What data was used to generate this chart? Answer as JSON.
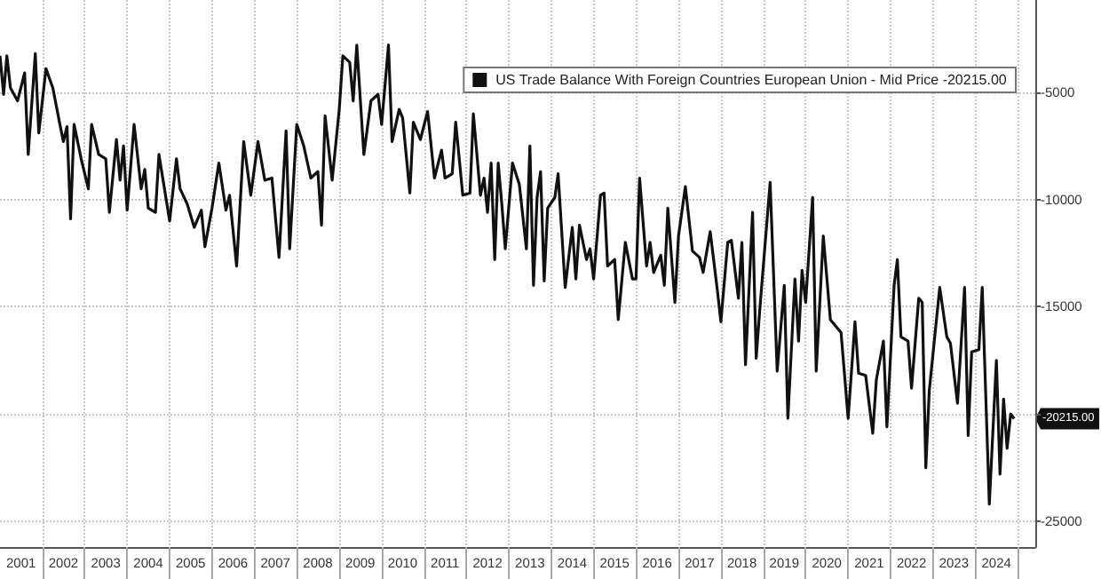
{
  "chart_data": {
    "type": "line",
    "x": [
      "2001-01",
      "2001-02",
      "2001-03",
      "2001-04",
      "2001-06",
      "2001-08",
      "2001-09",
      "2001-11",
      "2001-12",
      "2002-02",
      "2002-04",
      "2002-06",
      "2002-07",
      "2002-08",
      "2002-09",
      "2002-10",
      "2002-12",
      "2003-02",
      "2003-03",
      "2003-05",
      "2003-07",
      "2003-08",
      "2003-10",
      "2003-11",
      "2003-12",
      "2004-01",
      "2004-03",
      "2004-05",
      "2004-06",
      "2004-07",
      "2004-09",
      "2004-10",
      "2005-01",
      "2005-03",
      "2005-04",
      "2005-06",
      "2005-08",
      "2005-10",
      "2005-11",
      "2006-01",
      "2006-03",
      "2006-05",
      "2006-06",
      "2006-08",
      "2006-10",
      "2006-12",
      "2007-02",
      "2007-04",
      "2007-06",
      "2007-08",
      "2007-10",
      "2007-11",
      "2008-01",
      "2008-03",
      "2008-05",
      "2008-07",
      "2008-08",
      "2008-09",
      "2008-11",
      "2009-01",
      "2009-02",
      "2009-04",
      "2009-05",
      "2009-06",
      "2009-08",
      "2009-10",
      "2009-12",
      "2010-01",
      "2010-03",
      "2010-04",
      "2010-06",
      "2010-07",
      "2010-09",
      "2010-10",
      "2010-12",
      "2011-02",
      "2011-04",
      "2011-06",
      "2011-07",
      "2011-09",
      "2011-10",
      "2011-12",
      "2012-02",
      "2012-03",
      "2012-05",
      "2012-06",
      "2012-07",
      "2012-08",
      "2012-09",
      "2012-10",
      "2012-11",
      "2012-12",
      "2013-02",
      "2013-04",
      "2013-06",
      "2013-07",
      "2013-08",
      "2013-09",
      "2013-10",
      "2013-11",
      "2013-12",
      "2014-02",
      "2014-03",
      "2014-05",
      "2014-07",
      "2014-08",
      "2014-09",
      "2014-11",
      "2014-12",
      "2015-01",
      "2015-03",
      "2015-04",
      "2015-05",
      "2015-07",
      "2015-08",
      "2015-10",
      "2015-12",
      "2016-01",
      "2016-02",
      "2016-04",
      "2016-05",
      "2016-06",
      "2016-08",
      "2016-09",
      "2016-10",
      "2016-12",
      "2017-01",
      "2017-03",
      "2017-05",
      "2017-07",
      "2017-08",
      "2017-10",
      "2017-12",
      "2018-01",
      "2018-03",
      "2018-04",
      "2018-06",
      "2018-07",
      "2018-08",
      "2018-10",
      "2018-11",
      "2018-12",
      "2019-03",
      "2019-05",
      "2019-07",
      "2019-08",
      "2019-10",
      "2019-11",
      "2019-12",
      "2020-01",
      "2020-03",
      "2020-04",
      "2020-06",
      "2020-08",
      "2020-11",
      "2021-01",
      "2021-03",
      "2021-04",
      "2021-06",
      "2021-08",
      "2021-09",
      "2021-11",
      "2021-12",
      "2022-02",
      "2022-03",
      "2022-04",
      "2022-06",
      "2022-07",
      "2022-09",
      "2022-10",
      "2022-11",
      "2022-12",
      "2023-03",
      "2023-05",
      "2023-06",
      "2023-08",
      "2023-10",
      "2023-11",
      "2023-12",
      "2024-02",
      "2024-03",
      "2024-05",
      "2024-07",
      "2024-08",
      "2024-09",
      "2024-10",
      "2024-11",
      "2024-12"
    ],
    "series": [
      {
        "name": "US Trade Balance With Foreign Countries European Union - Mid Price -20215.00",
        "color": "#111111",
        "values": [
          -3300,
          -5100,
          -3300,
          -4800,
          -5400,
          -4100,
          -7900,
          -3200,
          -6900,
          -3900,
          -4800,
          -6500,
          -7300,
          -6600,
          -10900,
          -6500,
          -8100,
          -9500,
          -6500,
          -7900,
          -8100,
          -10600,
          -7200,
          -9100,
          -7500,
          -10500,
          -6500,
          -9500,
          -8600,
          -10400,
          -10600,
          -7900,
          -11000,
          -8100,
          -9500,
          -10200,
          -11300,
          -10500,
          -12200,
          -10400,
          -8300,
          -10500,
          -9800,
          -13100,
          -7300,
          -9800,
          -7300,
          -9100,
          -9000,
          -12700,
          -6800,
          -12300,
          -6500,
          -7500,
          -9000,
          -8700,
          -11200,
          -6100,
          -9100,
          -5800,
          -3300,
          -3600,
          -5400,
          -2800,
          -7900,
          -5400,
          -5100,
          -6500,
          -2800,
          -7300,
          -5800,
          -6200,
          -9700,
          -6400,
          -7200,
          -5900,
          -9000,
          -7700,
          -9000,
          -8800,
          -6400,
          -9800,
          -9700,
          -6000,
          -9800,
          -9000,
          -10600,
          -8300,
          -12800,
          -8300,
          -10200,
          -12300,
          -8300,
          -9300,
          -12300,
          -7500,
          -14000,
          -9900,
          -8700,
          -13800,
          -10400,
          -9900,
          -8800,
          -14100,
          -11300,
          -13700,
          -11200,
          -12800,
          -12300,
          -13700,
          -9800,
          -9700,
          -13100,
          -12800,
          -15600,
          -12000,
          -13700,
          -13700,
          -9000,
          -13100,
          -12000,
          -13400,
          -12600,
          -14000,
          -10400,
          -14800,
          -11700,
          -9400,
          -12400,
          -12700,
          -13400,
          -11500,
          -14200,
          -15700,
          -12000,
          -11900,
          -14600,
          -12000,
          -17700,
          -10600,
          -17400,
          -15200,
          -9200,
          -18000,
          -14000,
          -20200,
          -13700,
          -16600,
          -13300,
          -14800,
          -9900,
          -18000,
          -11700,
          -15600,
          -16200,
          -20200,
          -15700,
          -18100,
          -18200,
          -20900,
          -18400,
          -16600,
          -20600,
          -14000,
          -12800,
          -16400,
          -16600,
          -18800,
          -14600,
          -14800,
          -22500,
          -18900,
          -14100,
          -16400,
          -16700,
          -19500,
          -14100,
          -21000,
          -17100,
          -17000,
          -14100,
          -24200,
          -17500,
          -22800,
          -19300,
          -21600,
          -20000,
          -20215
        ]
      }
    ],
    "xlim": [
      "2001-01",
      "2025-06"
    ],
    "xticks": [
      {
        "value": "2001-07",
        "label": "2001"
      },
      {
        "value": "2002-01",
        "label": null
      },
      {
        "value": "2002-07",
        "label": "2002"
      },
      {
        "value": "2003-01",
        "label": null
      },
      {
        "value": "2003-07",
        "label": "2003"
      },
      {
        "value": "2004-01",
        "label": null
      },
      {
        "value": "2004-07",
        "label": "2004"
      },
      {
        "value": "2005-01",
        "label": null
      },
      {
        "value": "2005-07",
        "label": "2005"
      },
      {
        "value": "2006-01",
        "label": null
      },
      {
        "value": "2006-07",
        "label": "2006"
      },
      {
        "value": "2007-01",
        "label": null
      },
      {
        "value": "2007-07",
        "label": "2007"
      },
      {
        "value": "2008-01",
        "label": null
      },
      {
        "value": "2008-07",
        "label": "2008"
      },
      {
        "value": "2009-01",
        "label": null
      },
      {
        "value": "2009-07",
        "label": "2009"
      },
      {
        "value": "2010-01",
        "label": null
      },
      {
        "value": "2010-07",
        "label": "2010"
      },
      {
        "value": "2011-01",
        "label": null
      },
      {
        "value": "2011-07",
        "label": "2011"
      },
      {
        "value": "2012-01",
        "label": null
      },
      {
        "value": "2012-07",
        "label": "2012"
      },
      {
        "value": "2013-01",
        "label": null
      },
      {
        "value": "2013-07",
        "label": "2013"
      },
      {
        "value": "2014-01",
        "label": null
      },
      {
        "value": "2014-07",
        "label": "2014"
      },
      {
        "value": "2015-01",
        "label": null
      },
      {
        "value": "2015-07",
        "label": "2015"
      },
      {
        "value": "2016-01",
        "label": null
      },
      {
        "value": "2016-07",
        "label": "2016"
      },
      {
        "value": "2017-01",
        "label": null
      },
      {
        "value": "2017-07",
        "label": "2017"
      },
      {
        "value": "2018-01",
        "label": null
      },
      {
        "value": "2018-07",
        "label": "2018"
      },
      {
        "value": "2019-01",
        "label": null
      },
      {
        "value": "2019-07",
        "label": "2019"
      },
      {
        "value": "2020-01",
        "label": null
      },
      {
        "value": "2020-07",
        "label": "2020"
      },
      {
        "value": "2021-01",
        "label": null
      },
      {
        "value": "2021-07",
        "label": "2021"
      },
      {
        "value": "2022-01",
        "label": null
      },
      {
        "value": "2022-07",
        "label": "2022"
      },
      {
        "value": "2023-01",
        "label": null
      },
      {
        "value": "2023-07",
        "label": "2023"
      },
      {
        "value": "2024-01",
        "label": null
      },
      {
        "value": "2024-07",
        "label": "2024"
      },
      {
        "value": "2025-01",
        "label": null
      }
    ],
    "ylim": [
      -26200,
      -700
    ],
    "yticks": [
      -5000,
      -10000,
      -15000,
      {
        "value": -20000,
        "label": null
      },
      -25000
    ],
    "annotations": [
      {
        "text": "-20215.00",
        "x": "2024-12",
        "y": -20215
      }
    ],
    "grid": true,
    "legend": "top right",
    "marker": "none",
    "line_style": "solid"
  }
}
